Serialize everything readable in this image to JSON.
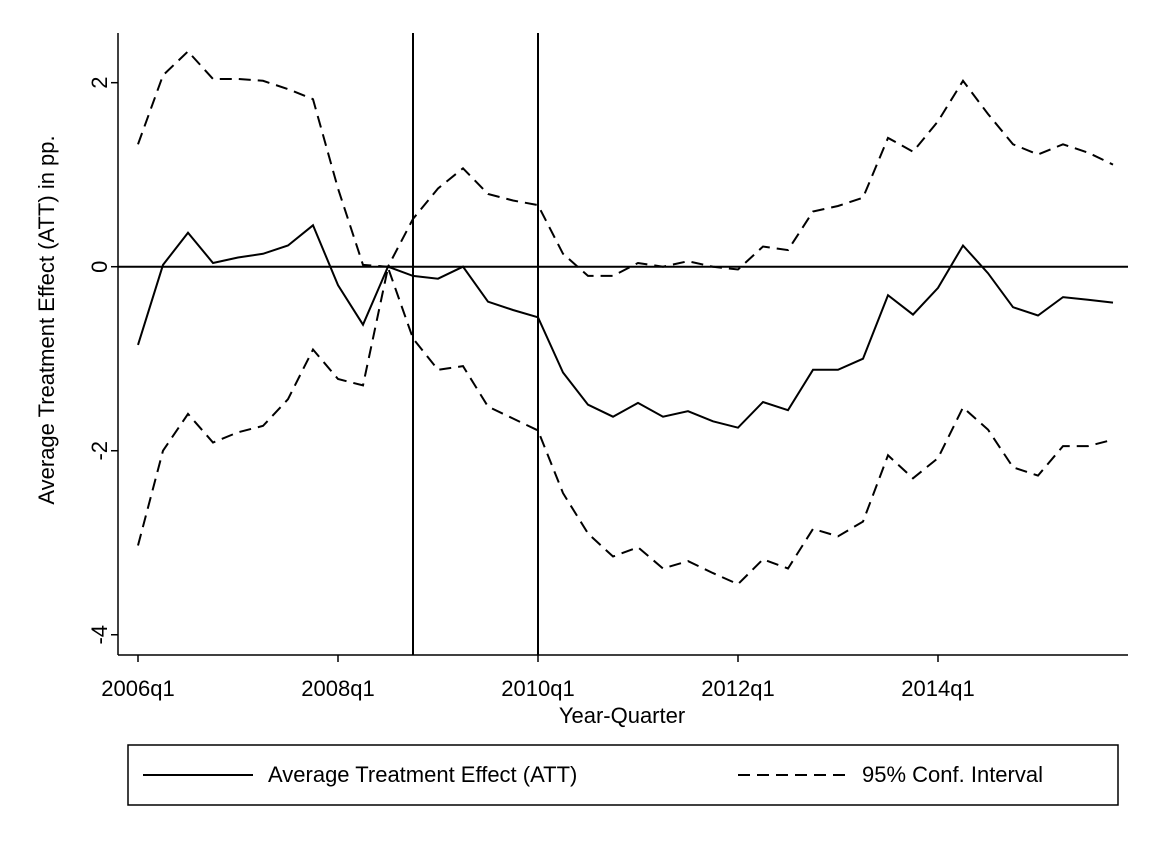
{
  "chart_data": {
    "type": "line",
    "xlabel": "Year-Quarter",
    "ylabel": "Average Treatment Effect (ATT) in pp.",
    "categories": [
      "2006q1",
      null,
      null,
      null,
      null,
      null,
      null,
      null,
      "2008q1",
      null,
      null,
      null,
      null,
      null,
      null,
      null,
      "2010q1",
      null,
      null,
      null,
      null,
      null,
      null,
      null,
      "2012q1",
      null,
      null,
      null,
      null,
      null,
      null,
      null,
      "2014q1",
      null,
      null,
      null,
      null,
      null,
      null,
      null
    ],
    "series": [
      {
        "name": "Average Treatment Effect (ATT)",
        "color": "#000000",
        "dash": false,
        "values": [
          -0.85,
          0.02,
          0.37,
          0.04,
          0.1,
          0.14,
          0.23,
          0.45,
          -0.2,
          -0.63,
          0.0,
          -0.1,
          -0.13,
          0.0,
          -0.38,
          -0.47,
          -0.55,
          -1.15,
          -1.5,
          -1.63,
          -1.48,
          -1.63,
          -1.57,
          -1.68,
          -1.75,
          -1.47,
          -1.56,
          -1.12,
          -1.12,
          -1.0,
          -0.31,
          -0.52,
          -0.23,
          0.23,
          -0.07,
          -0.44,
          -0.53,
          -0.33,
          -0.36,
          -0.39
        ]
      },
      {
        "name": "95% Conf. Interval",
        "color": "#000000",
        "dash": true,
        "upper": [
          1.33,
          2.08,
          2.34,
          2.04,
          2.04,
          2.02,
          1.93,
          1.82,
          0.85,
          0.02,
          0.0,
          0.52,
          0.85,
          1.07,
          0.79,
          0.72,
          0.67,
          0.14,
          -0.1,
          -0.1,
          0.04,
          0.0,
          0.06,
          0.0,
          -0.03,
          0.22,
          0.18,
          0.6,
          0.66,
          0.75,
          1.4,
          1.25,
          1.58,
          2.02,
          1.66,
          1.33,
          1.22,
          1.33,
          1.24,
          1.11
        ],
        "lower": [
          -3.03,
          -2.0,
          -1.6,
          -1.91,
          -1.8,
          -1.73,
          -1.44,
          -0.9,
          -1.22,
          -1.29,
          -0.01,
          -0.78,
          -1.12,
          -1.08,
          -1.52,
          -1.65,
          -1.78,
          -2.46,
          -2.9,
          -3.15,
          -3.05,
          -3.28,
          -3.2,
          -3.33,
          -3.45,
          -3.18,
          -3.28,
          -2.85,
          -2.93,
          -2.77,
          -2.05,
          -2.3,
          -2.08,
          -1.53,
          -1.77,
          -2.18,
          -2.27,
          -1.95,
          -1.95,
          -1.88
        ]
      }
    ],
    "ylim": [
      -4.22,
      2.54
    ],
    "yticks": [
      -4,
      -2,
      0,
      2
    ],
    "hline": 0,
    "xlines": [
      11,
      16
    ],
    "grid": false,
    "legend": "bottom"
  }
}
